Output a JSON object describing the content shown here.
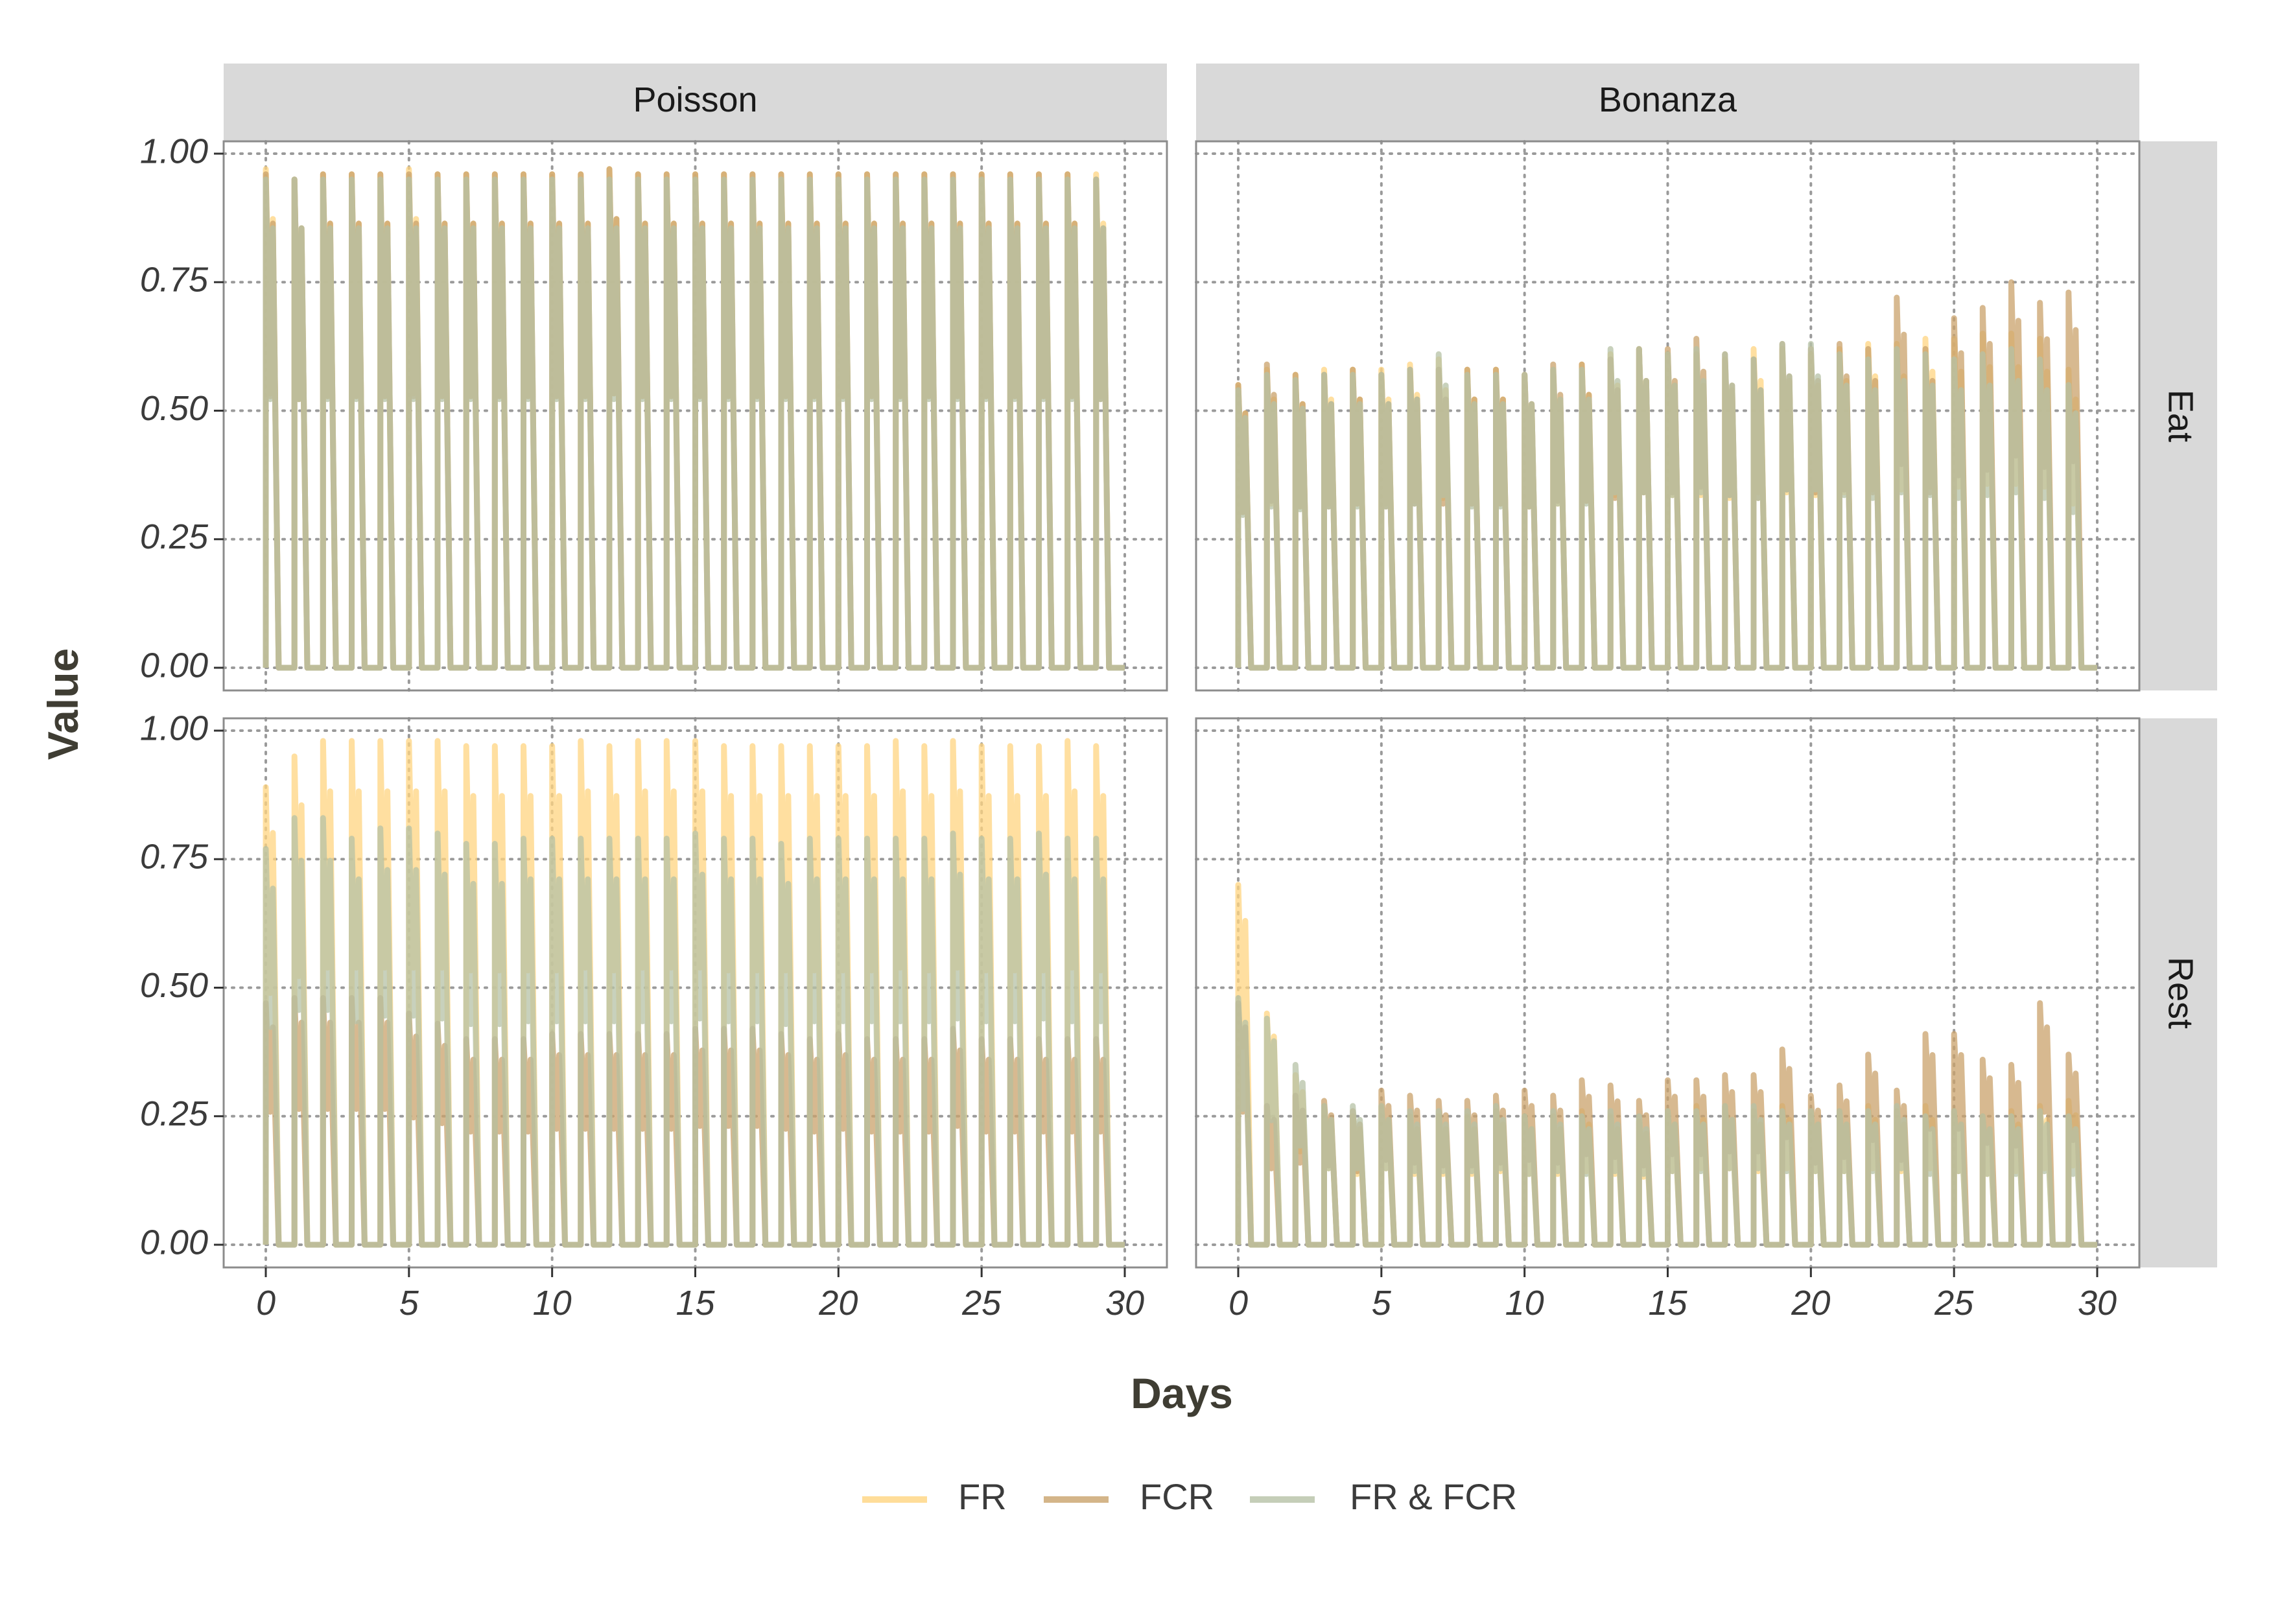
{
  "chart_data": {
    "type": "line",
    "facet_columns": [
      "Poisson",
      "Bonanza"
    ],
    "facet_rows": [
      "Eat",
      "Rest"
    ],
    "xlabel": "Days",
    "ylabel": "Value",
    "xlim": [
      0,
      30
    ],
    "ylim": [
      0,
      1
    ],
    "x_ticks": [
      "0",
      "5",
      "10",
      "15",
      "20",
      "25",
      "30"
    ],
    "y_ticks": [
      "0.00",
      "0.25",
      "0.50",
      "0.75",
      "1.00"
    ],
    "grid": "dotted",
    "legend_position": "bottom",
    "series": [
      {
        "name": "FR",
        "color": "#FFD480"
      },
      {
        "name": "FCR",
        "color": "#C9A26B"
      },
      {
        "name": "FR & FCR",
        "color": "#B6C2A6"
      }
    ],
    "panels": [
      {
        "column": "Poisson",
        "row": "Eat",
        "values": {
          "FR": [
            0.97,
            0.95,
            0.96,
            0.96,
            0.96,
            0.97,
            0.96,
            0.96,
            0.96,
            0.96,
            0.96,
            0.96,
            0.97,
            0.96,
            0.96,
            0.96,
            0.96,
            0.96,
            0.96,
            0.96,
            0.96,
            0.96,
            0.96,
            0.96,
            0.96,
            0.96,
            0.96,
            0.96,
            0.96,
            0.96
          ],
          "FCR": [
            0.96,
            0.95,
            0.96,
            0.96,
            0.96,
            0.96,
            0.96,
            0.96,
            0.96,
            0.96,
            0.96,
            0.96,
            0.97,
            0.96,
            0.96,
            0.96,
            0.96,
            0.96,
            0.96,
            0.96,
            0.96,
            0.96,
            0.96,
            0.96,
            0.96,
            0.96,
            0.96,
            0.96,
            0.96,
            0.95
          ],
          "FR & FCR": [
            0.95,
            0.95,
            0.95,
            0.95,
            0.95,
            0.95,
            0.95,
            0.95,
            0.95,
            0.95,
            0.95,
            0.95,
            0.95,
            0.95,
            0.95,
            0.95,
            0.95,
            0.95,
            0.95,
            0.95,
            0.95,
            0.95,
            0.95,
            0.95,
            0.95,
            0.95,
            0.95,
            0.95,
            0.95,
            0.95
          ]
        }
      },
      {
        "column": "Bonanza",
        "row": "Eat",
        "values": {
          "FR": [
            0.55,
            0.58,
            0.57,
            0.58,
            0.58,
            0.58,
            0.59,
            0.6,
            0.58,
            0.58,
            0.57,
            0.58,
            0.59,
            0.61,
            0.62,
            0.61,
            0.61,
            0.6,
            0.62,
            0.62,
            0.61,
            0.62,
            0.63,
            0.63,
            0.64,
            0.64,
            0.65,
            0.65,
            0.64,
            0.58
          ],
          "FCR": [
            0.55,
            0.59,
            0.57,
            0.57,
            0.58,
            0.57,
            0.58,
            0.58,
            0.58,
            0.58,
            0.57,
            0.59,
            0.59,
            0.6,
            0.62,
            0.62,
            0.64,
            0.61,
            0.6,
            0.63,
            0.62,
            0.63,
            0.62,
            0.72,
            0.62,
            0.68,
            0.7,
            0.75,
            0.71,
            0.73
          ],
          "FR & FCR": [
            0.54,
            0.57,
            0.56,
            0.57,
            0.57,
            0.57,
            0.58,
            0.61,
            0.57,
            0.57,
            0.57,
            0.58,
            0.58,
            0.62,
            0.62,
            0.61,
            0.62,
            0.61,
            0.6,
            0.63,
            0.63,
            0.61,
            0.6,
            0.62,
            0.61,
            0.6,
            0.61,
            0.62,
            0.6,
            0.55
          ]
        }
      },
      {
        "column": "Poisson",
        "row": "Rest",
        "values": {
          "FR": [
            0.89,
            0.95,
            0.98,
            0.98,
            0.98,
            0.98,
            0.98,
            0.97,
            0.97,
            0.97,
            0.97,
            0.98,
            0.97,
            0.98,
            0.98,
            0.98,
            0.97,
            0.97,
            0.97,
            0.97,
            0.97,
            0.97,
            0.98,
            0.97,
            0.98,
            0.97,
            0.97,
            0.97,
            0.98,
            0.97
          ],
          "FCR": [
            0.47,
            0.48,
            0.48,
            0.48,
            0.48,
            0.45,
            0.43,
            0.4,
            0.4,
            0.4,
            0.41,
            0.41,
            0.41,
            0.41,
            0.41,
            0.42,
            0.42,
            0.42,
            0.41,
            0.4,
            0.41,
            0.4,
            0.4,
            0.4,
            0.42,
            0.4,
            0.4,
            0.4,
            0.4,
            0.4
          ],
          "FR & FCR": [
            0.77,
            0.83,
            0.83,
            0.79,
            0.81,
            0.81,
            0.8,
            0.78,
            0.78,
            0.79,
            0.79,
            0.79,
            0.79,
            0.79,
            0.79,
            0.8,
            0.79,
            0.79,
            0.78,
            0.79,
            0.79,
            0.79,
            0.79,
            0.79,
            0.8,
            0.79,
            0.79,
            0.8,
            0.79,
            0.79
          ]
        }
      },
      {
        "column": "Bonanza",
        "row": "Rest",
        "values": {
          "FR": [
            0.7,
            0.45,
            0.33,
            0.27,
            0.25,
            0.27,
            0.25,
            0.25,
            0.25,
            0.26,
            0.25,
            0.25,
            0.26,
            0.25,
            0.24,
            0.26,
            0.27,
            0.27,
            0.26,
            0.27,
            0.26,
            0.26,
            0.27,
            0.26,
            0.27,
            0.26,
            0.25,
            0.26,
            0.27,
            0.28
          ],
          "FCR": [
            0.47,
            0.27,
            0.29,
            0.28,
            0.26,
            0.3,
            0.29,
            0.28,
            0.28,
            0.29,
            0.3,
            0.29,
            0.32,
            0.31,
            0.28,
            0.32,
            0.32,
            0.33,
            0.33,
            0.38,
            0.29,
            0.31,
            0.37,
            0.3,
            0.41,
            0.41,
            0.36,
            0.35,
            0.47,
            0.37
          ],
          "FR & FCR": [
            0.48,
            0.44,
            0.35,
            0.27,
            0.27,
            0.27,
            0.26,
            0.26,
            0.26,
            0.27,
            0.25,
            0.26,
            0.25,
            0.26,
            0.25,
            0.26,
            0.26,
            0.27,
            0.27,
            0.26,
            0.26,
            0.26,
            0.26,
            0.27,
            0.25,
            0.26,
            0.25,
            0.25,
            0.26,
            0.25
          ]
        }
      }
    ]
  }
}
